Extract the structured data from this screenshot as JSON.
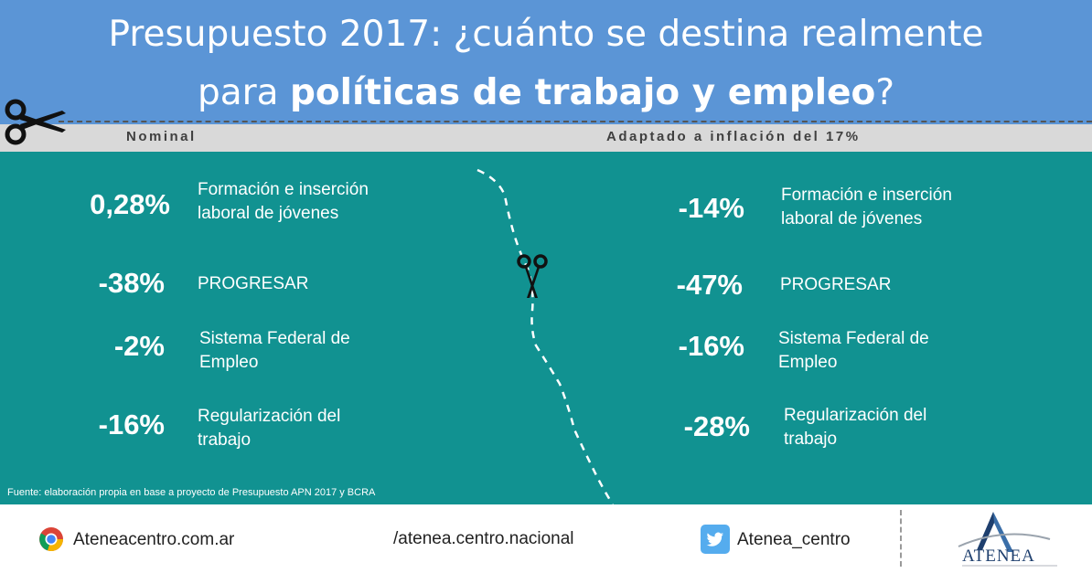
{
  "title": {
    "line1": "Presupuesto 2017: ¿cuánto se destina realmente",
    "line2_pre": "para ",
    "line2_bold": "políticas de trabajo y empleo",
    "line2_post": "?"
  },
  "subheaders": {
    "left": "Nominal",
    "right": "Adaptado a inflación del 17%"
  },
  "nominal": [
    {
      "pct": "0,28%",
      "label": "Formación e inserción laboral de jóvenes"
    },
    {
      "pct": "-38%",
      "label": "PROGRESAR"
    },
    {
      "pct": "-2%",
      "label": "Sistema Federal de Empleo"
    },
    {
      "pct": "-16%",
      "label": "Regularización del trabajo"
    }
  ],
  "adjusted": [
    {
      "pct": "-14%",
      "label": "Formación e inserción laboral de jóvenes"
    },
    {
      "pct": "-47%",
      "label": "PROGRESAR"
    },
    {
      "pct": "-16%",
      "label": "Sistema Federal de Empleo"
    },
    {
      "pct": "-28%",
      "label": "Regularización del trabajo"
    }
  ],
  "source": "Fuente: elaboración propia en base a proyecto de Presupuesto APN 2017 y BCRA",
  "footer": {
    "website": "Ateneacentro.com.ar",
    "facebook": "/atenea.centro.nacional",
    "twitter": "Atenea_centro",
    "logo_text": "ATENEA"
  },
  "icons": [
    "scissors-icon",
    "chrome-icon",
    "twitter-icon",
    "atenea-logo"
  ],
  "colors": {
    "header": "#5b95d6",
    "subbar": "#d9d9d9",
    "teal": "#119291",
    "twitter": "#55acee"
  }
}
